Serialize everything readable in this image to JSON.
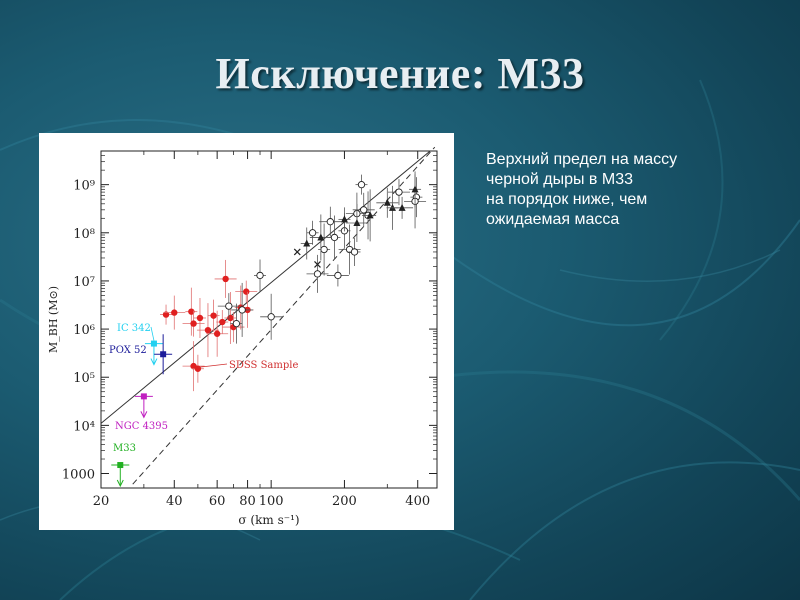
{
  "slide": {
    "title": "Исключение: М33",
    "note_lines": [
      "Верхний предел на массу",
      "черной дыры в М33",
      "на порядок ниже, чем",
      "ожидаемая масса"
    ]
  },
  "colors": {
    "background": "#1b5b71",
    "title": "#e8eef2",
    "sdss_points": "#e02020",
    "reference_points": "#222222",
    "ic342": "#22d0f0",
    "pox52": "#1c1c9a",
    "ngc4395": "#c020c0",
    "m33": "#22b022"
  },
  "chart_data": {
    "type": "scatter",
    "xlabel": "σ (km s⁻¹)",
    "ylabel": "M_BH (M⊙)",
    "x_scale": "log",
    "y_scale": "log",
    "xlim": [
      20,
      480
    ],
    "ylim": [
      500,
      5000000000
    ],
    "x_ticks": [
      {
        "value": 20,
        "label": "20"
      },
      {
        "value": 40,
        "label": "40"
      },
      {
        "value": 60,
        "label": "60"
      },
      {
        "value": 80,
        "label": "80"
      },
      {
        "value": 100,
        "label": "100"
      },
      {
        "value": 200,
        "label": "200"
      },
      {
        "value": 400,
        "label": "400"
      }
    ],
    "y_ticks": [
      {
        "value": 1000,
        "label": "1000"
      },
      {
        "value": 10000,
        "label": "10⁴"
      },
      {
        "value": 100000,
        "label": "10⁵"
      },
      {
        "value": 1000000,
        "label": "10⁶"
      },
      {
        "value": 10000000,
        "label": "10⁷"
      },
      {
        "value": 100000000,
        "label": "10⁸"
      },
      {
        "value": 1000000000,
        "label": "10⁹"
      }
    ],
    "fit_lines": [
      {
        "style": "solid",
        "points": [
          [
            20,
            11000
          ],
          [
            450,
            5000000000
          ]
        ]
      },
      {
        "style": "dashed",
        "points": [
          [
            27,
            600
          ],
          [
            470,
            6000000000
          ]
        ]
      }
    ],
    "series": [
      {
        "name": "SDSS Sample",
        "marker": "filled-circle",
        "points": [
          [
            37,
            2000000
          ],
          [
            40,
            2200000
          ],
          [
            47,
            2300000
          ],
          [
            48,
            1300000
          ],
          [
            51,
            1700000
          ],
          [
            55,
            950000
          ],
          [
            58,
            1900000
          ],
          [
            60,
            800000
          ],
          [
            63,
            1400000
          ],
          [
            65,
            11000000
          ],
          [
            68,
            1700000
          ],
          [
            70,
            1100000
          ],
          [
            75,
            2800000
          ],
          [
            79,
            6000000
          ],
          [
            80,
            2500000
          ],
          [
            48,
            170000
          ],
          [
            50,
            150000
          ]
        ]
      },
      {
        "marker": "open-circle",
        "points": [
          [
            67,
            3000000
          ],
          [
            72,
            1300000
          ],
          [
            76,
            2500000
          ],
          [
            90,
            13000000
          ],
          [
            100,
            1800000
          ],
          [
            148,
            100000000
          ],
          [
            155,
            14000000
          ],
          [
            165,
            45000000
          ],
          [
            175,
            170000000
          ],
          [
            182,
            80000000
          ],
          [
            188,
            13000000
          ],
          [
            200,
            110000000
          ],
          [
            210,
            45000000
          ],
          [
            220,
            40000000
          ],
          [
            225,
            250000000
          ],
          [
            235,
            1000000000
          ],
          [
            240,
            300000000
          ],
          [
            250,
            230000000
          ],
          [
            335,
            700000000
          ],
          [
            395,
            550000000
          ],
          [
            390,
            450000000
          ]
        ]
      },
      {
        "marker": "filled-triangle",
        "points": [
          [
            140,
            60000000
          ],
          [
            160,
            80000000
          ],
          [
            200,
            190000000
          ],
          [
            225,
            160000000
          ],
          [
            255,
            230000000
          ],
          [
            300,
            420000000
          ],
          [
            315,
            330000000
          ],
          [
            345,
            330000000
          ],
          [
            390,
            800000000
          ]
        ]
      },
      {
        "marker": "cross",
        "points": [
          [
            128,
            40000000
          ],
          [
            155,
            22000000
          ]
        ]
      },
      {
        "name": "IC 342",
        "marker": "filled-square",
        "limit": "upper",
        "points": [
          [
            33,
            500000
          ]
        ]
      },
      {
        "name": "POX 52",
        "marker": "filled-square",
        "points": [
          [
            36,
            300000
          ]
        ]
      },
      {
        "name": "NGC 4395",
        "marker": "filled-square",
        "limit": "upper",
        "points": [
          [
            30,
            40000
          ]
        ]
      },
      {
        "name": "M33",
        "marker": "filled-square",
        "limit": "upper",
        "points": [
          [
            24,
            1500
          ]
        ]
      }
    ],
    "annotations": [
      {
        "text": "IC 342"
      },
      {
        "text": "POX 52"
      },
      {
        "text": "SDSS Sample"
      },
      {
        "text": "NGC 4395"
      },
      {
        "text": "M33"
      }
    ]
  }
}
